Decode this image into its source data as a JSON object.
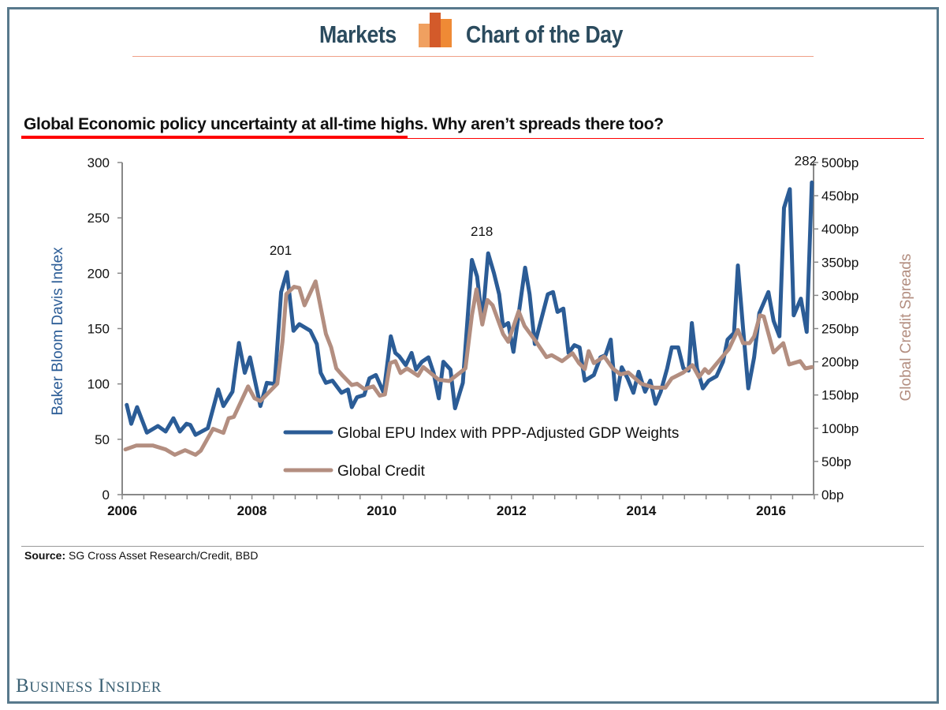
{
  "header": {
    "left": "Markets",
    "right": "Chart of the Day"
  },
  "subtitle": "Global Economic policy uncertainty at all-time highs. Why aren’t spreads there too?",
  "source": {
    "label": "Source:",
    "text": "SG Cross Asset Research/Credit, BBD"
  },
  "brand": {
    "first": "B",
    "first_rest": "USINESS",
    "second": "I",
    "second_rest": "NSIDER"
  },
  "colors": {
    "epu": "#2b5c96",
    "credit": "#b38e80",
    "frame": "#58798c",
    "title": "#2b4b5e",
    "accent": "#ff0000"
  },
  "chart_data": {
    "type": "line",
    "title": "Global Economic policy uncertainty at all-time highs. Why aren’t spreads there too?",
    "xlabel": "",
    "ylabel": "Baker Bloom Davis Index",
    "ylabel_right": "Global Credit Spreads",
    "xlim": [
      2006,
      2016.65
    ],
    "ylim": [
      0,
      300
    ],
    "ylim_right": [
      0,
      500
    ],
    "x_ticks": [
      "2006",
      "2008",
      "2010",
      "2012",
      "2014",
      "2016"
    ],
    "x_tick_values": [
      2006,
      2008,
      2010,
      2012,
      2014,
      2016
    ],
    "y_ticks": [
      "0",
      "50",
      "100",
      "150",
      "200",
      "250",
      "300"
    ],
    "y_tick_values": [
      0,
      50,
      100,
      150,
      200,
      250,
      300
    ],
    "y_right_ticks": [
      "0bp",
      "50bp",
      "100bp",
      "150bp",
      "200bp",
      "250bp",
      "300bp",
      "350bp",
      "400bp",
      "450bp",
      "500bp"
    ],
    "y_right_tick_values": [
      0,
      50,
      100,
      150,
      200,
      250,
      300,
      350,
      400,
      450,
      500
    ],
    "grid": false,
    "legend_position": "bottom-center",
    "annotations": [
      {
        "text": "201",
        "x": 2008.54,
        "y": 201
      },
      {
        "text": "218",
        "x": 2011.64,
        "y": 218
      },
      {
        "text": "282",
        "x": 2016.63,
        "y": 282
      }
    ],
    "series": [
      {
        "name": "Global EPU Index with PPP-Adjusted GDP Weights",
        "axis": "left",
        "x": [
          2006.07,
          2006.14,
          2006.23,
          2006.38,
          2006.55,
          2006.67,
          2006.79,
          2006.89,
          2006.99,
          2007.05,
          2007.13,
          2007.32,
          2007.48,
          2007.56,
          2007.7,
          2007.8,
          2007.89,
          2007.97,
          2008.13,
          2008.23,
          2008.35,
          2008.45,
          2008.54,
          2008.64,
          2008.73,
          2008.9,
          2009.0,
          2009.06,
          2009.14,
          2009.24,
          2009.38,
          2009.48,
          2009.54,
          2009.62,
          2009.73,
          2009.81,
          2009.91,
          2010.03,
          2010.14,
          2010.21,
          2010.27,
          2010.37,
          2010.46,
          2010.53,
          2010.62,
          2010.72,
          2010.8,
          2010.88,
          2010.95,
          2011.06,
          2011.13,
          2011.25,
          2011.39,
          2011.47,
          2011.55,
          2011.64,
          2011.73,
          2011.81,
          2011.87,
          2011.95,
          2012.03,
          2012.21,
          2012.28,
          2012.36,
          2012.56,
          2012.64,
          2012.71,
          2012.8,
          2012.88,
          2012.97,
          2013.05,
          2013.13,
          2013.27,
          2013.37,
          2013.45,
          2013.53,
          2013.61,
          2013.7,
          2013.79,
          2013.88,
          2013.96,
          2014.06,
          2014.14,
          2014.22,
          2014.3,
          2014.4,
          2014.47,
          2014.57,
          2014.65,
          2014.73,
          2014.78,
          2014.86,
          2014.95,
          2015.04,
          2015.16,
          2015.26,
          2015.33,
          2015.43,
          2015.49,
          2015.57,
          2015.65,
          2015.74,
          2015.82,
          2015.96,
          2016.04,
          2016.13,
          2016.2,
          2016.29,
          2016.35,
          2016.46,
          2016.55,
          2016.63
        ],
        "values": [
          81,
          64,
          79,
          56,
          62,
          57,
          69,
          57,
          64,
          63,
          54,
          60,
          95,
          80,
          93,
          137,
          110,
          124,
          80,
          101,
          100,
          183,
          201,
          148,
          154,
          148,
          136,
          110,
          101,
          103,
          92,
          95,
          79,
          88,
          90,
          105,
          108,
          92,
          143,
          128,
          125,
          117,
          128,
          113,
          120,
          124,
          110,
          87,
          120,
          113,
          78,
          101,
          212,
          197,
          156,
          218,
          200,
          181,
          152,
          155,
          129,
          205,
          181,
          136,
          181,
          183,
          165,
          168,
          128,
          135,
          133,
          103,
          108,
          124,
          126,
          140,
          86,
          115,
          105,
          92,
          111,
          93,
          103,
          82,
          93,
          114,
          133,
          133,
          114,
          112,
          155,
          114,
          96,
          103,
          107,
          120,
          140,
          146,
          207,
          150,
          96,
          124,
          164,
          183,
          157,
          143,
          259,
          276,
          162,
          177,
          147,
          282
        ]
      },
      {
        "name": "Global Credit",
        "axis": "right",
        "x": [
          2006.05,
          2006.22,
          2006.47,
          2006.67,
          2006.81,
          2006.97,
          2007.13,
          2007.21,
          2007.4,
          2007.56,
          2007.64,
          2007.72,
          2007.94,
          2008.04,
          2008.13,
          2008.39,
          2008.47,
          2008.53,
          2008.65,
          2008.73,
          2008.81,
          2008.98,
          2009.14,
          2009.22,
          2009.3,
          2009.4,
          2009.54,
          2009.62,
          2009.73,
          2009.87,
          2009.97,
          2010.05,
          2010.13,
          2010.21,
          2010.29,
          2010.39,
          2010.56,
          2010.64,
          2010.88,
          2011.04,
          2011.29,
          2011.39,
          2011.46,
          2011.55,
          2011.63,
          2011.71,
          2011.87,
          2011.95,
          2012.11,
          2012.2,
          2012.38,
          2012.54,
          2012.62,
          2012.78,
          2012.94,
          2013.04,
          2013.13,
          2013.19,
          2013.27,
          2013.43,
          2013.56,
          2013.68,
          2013.8,
          2014.0,
          2014.2,
          2014.37,
          2014.47,
          2014.65,
          2014.79,
          2014.89,
          2014.98,
          2015.04,
          2015.22,
          2015.35,
          2015.49,
          2015.57,
          2015.67,
          2015.74,
          2015.83,
          2015.89,
          2016.04,
          2016.19,
          2016.28,
          2016.45,
          2016.53,
          2016.63
        ],
        "values": [
          68,
          74,
          74,
          68,
          60,
          67,
          60,
          66,
          99,
          93,
          115,
          117,
          163,
          145,
          141,
          167,
          230,
          302,
          313,
          311,
          285,
          321,
          242,
          222,
          190,
          179,
          165,
          167,
          159,
          163,
          149,
          151,
          198,
          201,
          183,
          190,
          179,
          192,
          173,
          171,
          190,
          270,
          309,
          256,
          293,
          285,
          242,
          230,
          276,
          254,
          230,
          207,
          210,
          201,
          213,
          198,
          189,
          216,
          198,
          208,
          190,
          181,
          184,
          167,
          161,
          161,
          175,
          184,
          195,
          177,
          189,
          183,
          204,
          219,
          248,
          228,
          228,
          238,
          270,
          268,
          214,
          228,
          196,
          201,
          190,
          192
        ]
      }
    ]
  }
}
